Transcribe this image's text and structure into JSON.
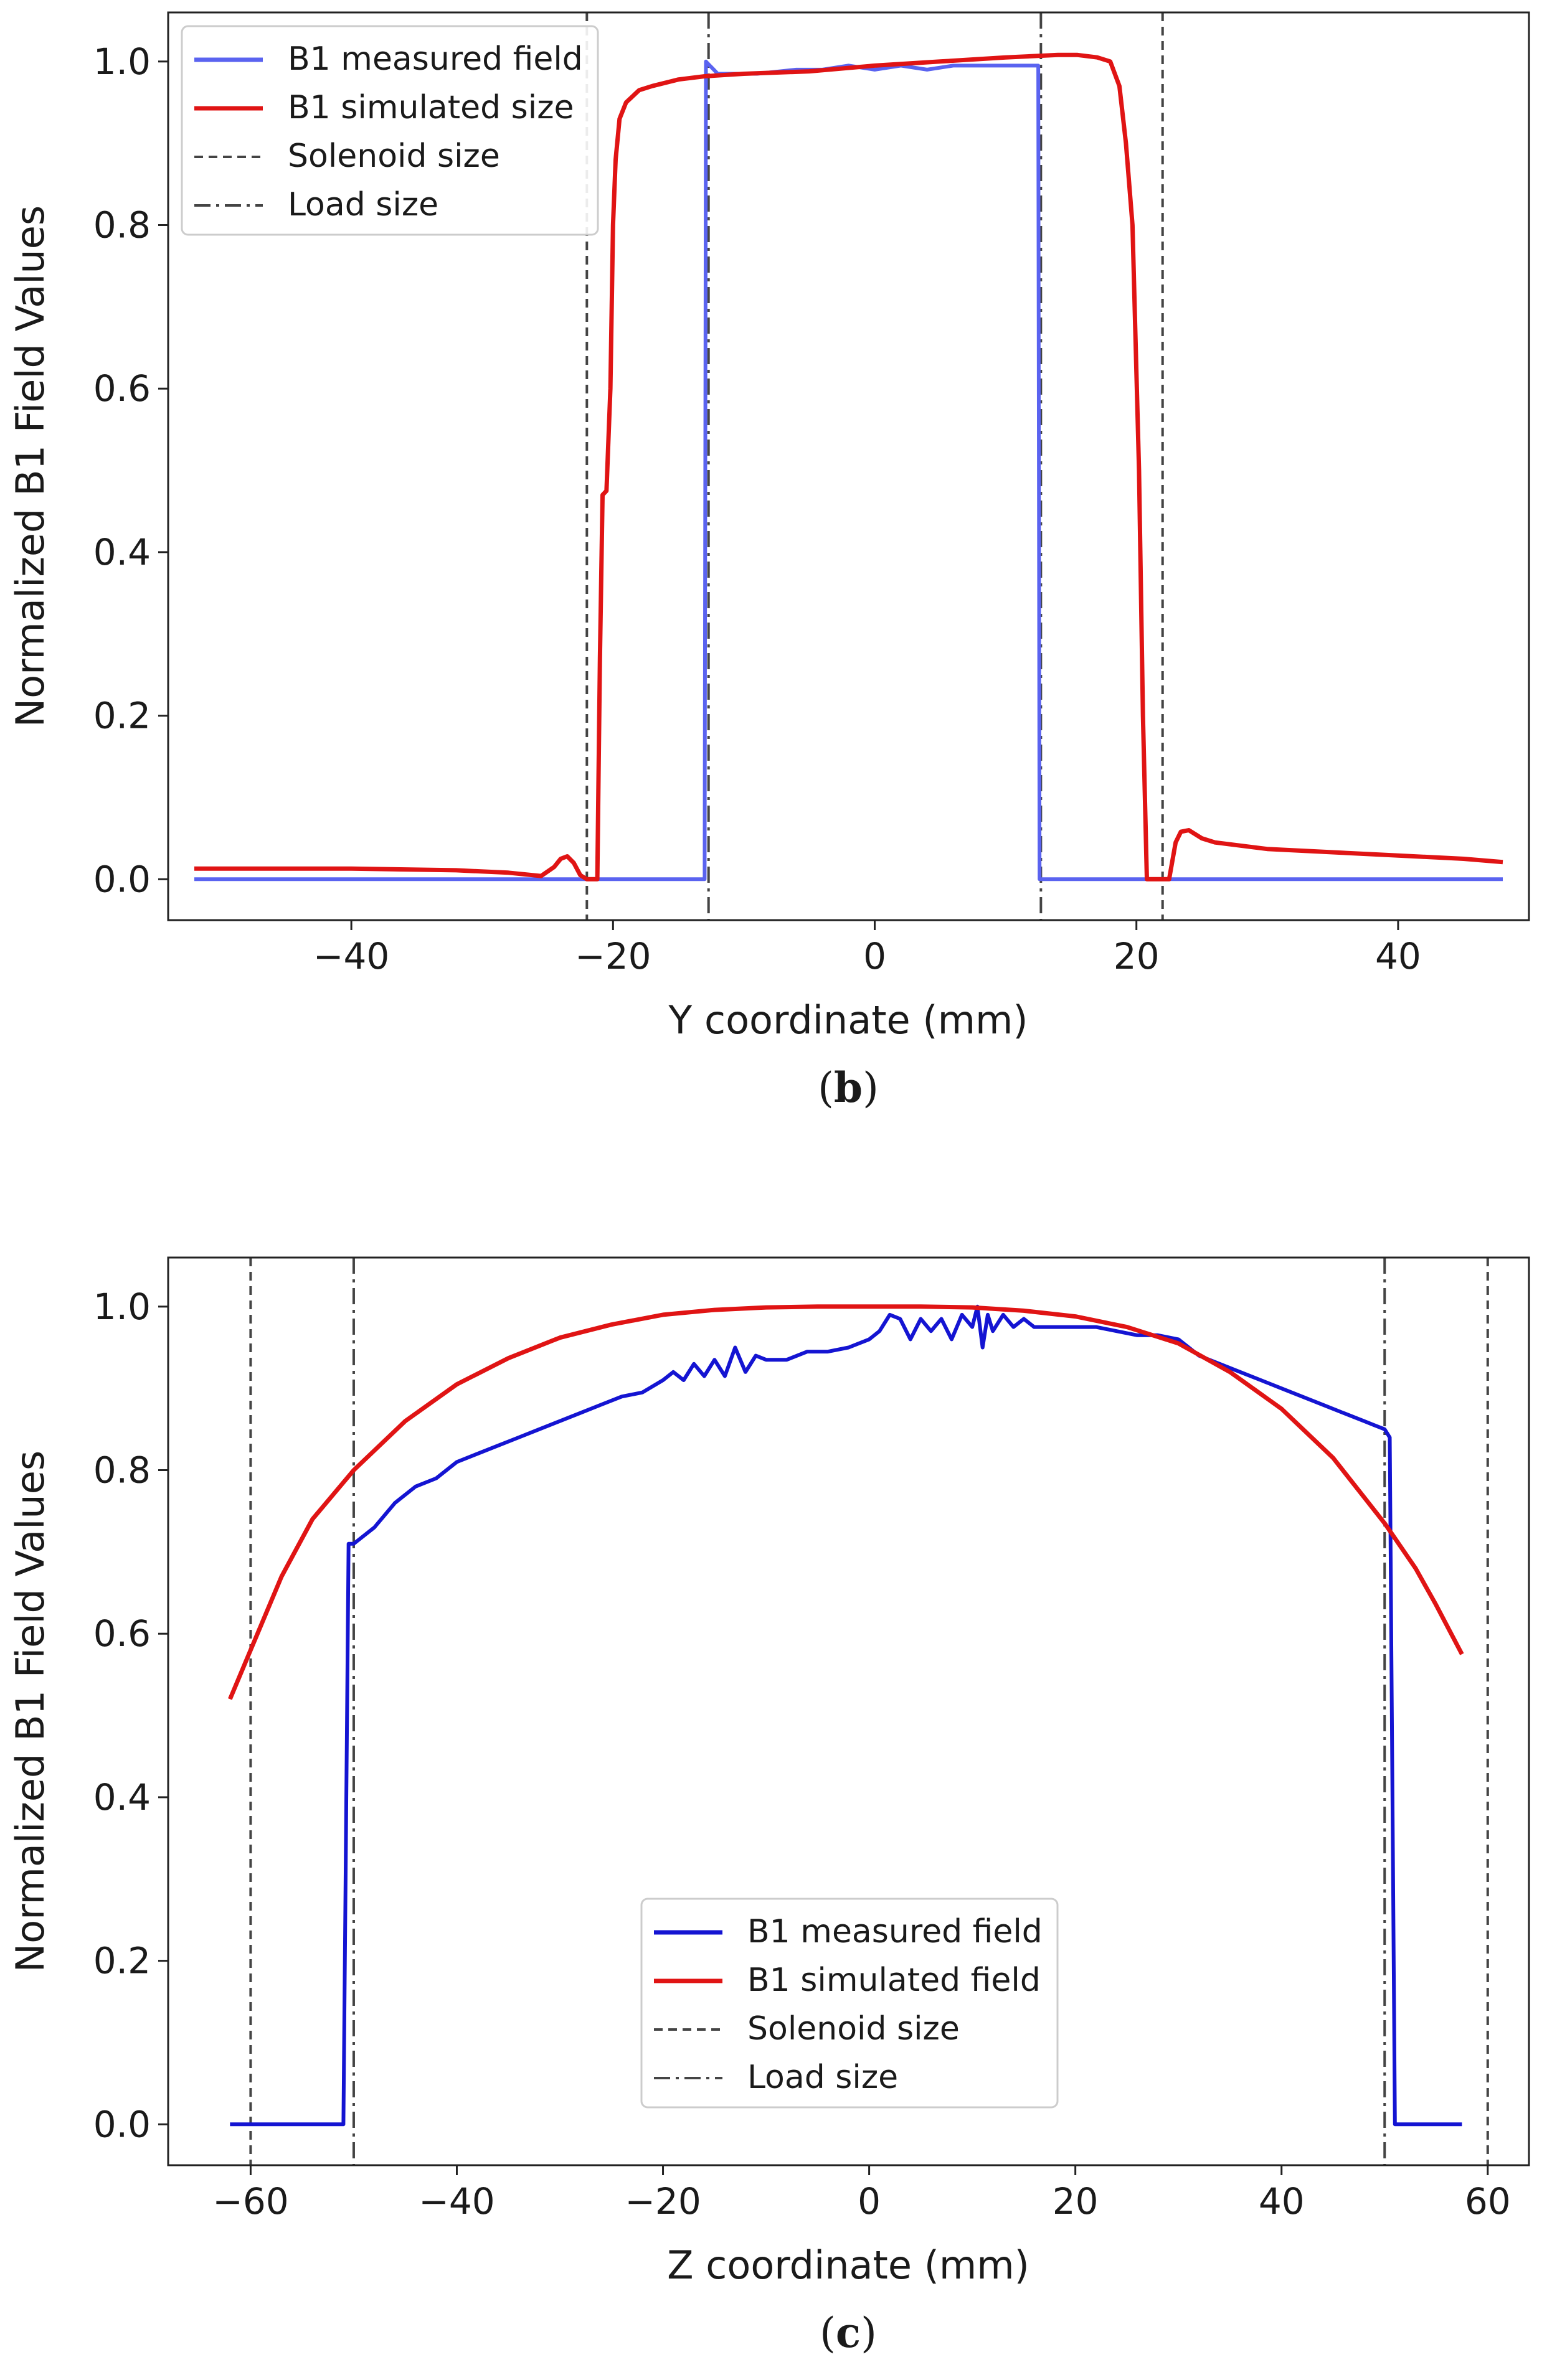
{
  "colors": {
    "measured_b": "#5a63f0",
    "measured_c": "#1414d2",
    "simulated": "#e01414",
    "guide": "#444444",
    "axes": "#222222"
  },
  "chart_data": [
    {
      "id": "panel-b",
      "type": "line",
      "caption_letter": "b",
      "xlabel": "Y coordinate (mm)",
      "ylabel": "Normalized B1 Field Values",
      "xlim": [
        -54,
        50
      ],
      "ylim": [
        -0.05,
        1.06
      ],
      "xticks": [
        -40,
        -20,
        0,
        20,
        40
      ],
      "xtick_labels": [
        "−40",
        "−20",
        "0",
        "20",
        "40"
      ],
      "yticks": [
        0.0,
        0.2,
        0.4,
        0.6,
        0.8,
        1.0
      ],
      "ytick_labels": [
        "0.0",
        "0.2",
        "0.4",
        "0.6",
        "0.8",
        "1.0"
      ],
      "legend_position": "upper-left",
      "series": [
        {
          "name": "B1 measured field",
          "style": "solid",
          "color_key": "measured_b",
          "x": [
            -52,
            -13.0,
            -12.9,
            -12.6,
            -12.3,
            -12,
            -9,
            -6,
            -4,
            -2,
            0,
            2,
            4,
            6,
            8,
            10,
            12.5,
            12.6,
            12.9,
            48
          ],
          "y": [
            0,
            0,
            1.0,
            0.995,
            0.99,
            0.985,
            0.985,
            0.99,
            0.99,
            0.995,
            0.99,
            0.995,
            0.99,
            0.995,
            0.995,
            0.995,
            0.995,
            0.0,
            0.0,
            0.0
          ]
        },
        {
          "name": "B1 simulated size",
          "style": "solid",
          "color_key": "simulated",
          "x": [
            -52,
            -40,
            -32,
            -28,
            -25.5,
            -24.5,
            -24,
            -23.5,
            -23,
            -22.5,
            -22,
            -21.2,
            -21.0,
            -20.8,
            -20.5,
            -20.2,
            -20,
            -19.8,
            -19.5,
            -19,
            -18,
            -17,
            -15,
            -13,
            -10,
            -5,
            0,
            5,
            10,
            14,
            15.5,
            17,
            18,
            18.7,
            19.2,
            19.7,
            20.2,
            20.5,
            20.8,
            21.2,
            22.5,
            23,
            23.4,
            24,
            25,
            26,
            30,
            35,
            40,
            45,
            48
          ],
          "y": [
            0.013,
            0.013,
            0.011,
            0.008,
            0.004,
            0.015,
            0.025,
            0.028,
            0.02,
            0.005,
            0.0,
            0.0,
            0.27,
            0.47,
            0.475,
            0.6,
            0.8,
            0.88,
            0.93,
            0.95,
            0.965,
            0.97,
            0.978,
            0.982,
            0.985,
            0.988,
            0.995,
            1.0,
            1.005,
            1.008,
            1.008,
            1.005,
            1.0,
            0.97,
            0.9,
            0.8,
            0.5,
            0.2,
            0.0,
            0.0,
            0.0,
            0.045,
            0.058,
            0.06,
            0.05,
            0.045,
            0.037,
            0.033,
            0.029,
            0.025,
            0.021
          ]
        },
        {
          "name": "Solenoid size",
          "style": "dashed",
          "color_key": "guide",
          "vlines": [
            -22,
            22
          ]
        },
        {
          "name": "Load size",
          "style": "dashdot",
          "color_key": "guide",
          "vlines": [
            -12.7,
            12.7
          ]
        }
      ]
    },
    {
      "id": "panel-c",
      "type": "line",
      "caption_letter": "c",
      "xlabel": "Z coordinate (mm)",
      "ylabel": "Normalized B1 Field Values",
      "xlim": [
        -68,
        64
      ],
      "ylim": [
        -0.05,
        1.06
      ],
      "xticks": [
        -60,
        -40,
        -20,
        0,
        20,
        40,
        60
      ],
      "xtick_labels": [
        "−60",
        "−40",
        "−20",
        "0",
        "20",
        "40",
        "60"
      ],
      "yticks": [
        0.0,
        0.2,
        0.4,
        0.6,
        0.8,
        1.0
      ],
      "ytick_labels": [
        "0.0",
        "0.2",
        "0.4",
        "0.6",
        "0.8",
        "1.0"
      ],
      "legend_position": "lower-center",
      "series": [
        {
          "name": "B1 measured field",
          "style": "solid",
          "color_key": "measured_c",
          "x": [
            -62,
            -51,
            -50.5,
            -50,
            -48,
            -46,
            -44,
            -42,
            -40,
            -38,
            -36,
            -34,
            -32,
            -30,
            -28,
            -26,
            -24,
            -22,
            -20,
            -19,
            -18,
            -17,
            -16,
            -15,
            -14,
            -13,
            -12,
            -11,
            -10,
            -8,
            -6,
            -4,
            -2,
            0,
            1,
            2,
            3,
            4,
            5,
            6,
            7,
            8,
            9,
            10,
            10.5,
            11,
            11.5,
            12,
            13,
            14,
            15,
            16,
            17,
            18,
            20,
            22,
            24,
            26,
            28,
            30,
            31,
            32,
            34,
            36,
            38,
            40,
            42,
            44,
            46,
            48,
            49,
            50,
            50.5,
            51,
            52,
            57.5
          ],
          "y": [
            0.0,
            0.0,
            0.71,
            0.71,
            0.73,
            0.76,
            0.78,
            0.79,
            0.81,
            0.82,
            0.83,
            0.84,
            0.85,
            0.86,
            0.87,
            0.88,
            0.89,
            0.895,
            0.91,
            0.92,
            0.91,
            0.93,
            0.915,
            0.935,
            0.915,
            0.95,
            0.92,
            0.94,
            0.935,
            0.935,
            0.945,
            0.945,
            0.95,
            0.96,
            0.97,
            0.99,
            0.985,
            0.96,
            0.985,
            0.97,
            0.985,
            0.96,
            0.99,
            0.975,
            1.0,
            0.95,
            0.99,
            0.97,
            0.99,
            0.975,
            0.985,
            0.975,
            0.975,
            0.975,
            0.975,
            0.975,
            0.97,
            0.965,
            0.965,
            0.96,
            0.95,
            0.94,
            0.93,
            0.92,
            0.91,
            0.9,
            0.89,
            0.88,
            0.87,
            0.86,
            0.855,
            0.85,
            0.84,
            0.0,
            0.0,
            0.0
          ]
        },
        {
          "name": "B1 simulated field",
          "style": "solid",
          "color_key": "simulated",
          "x": [
            -62,
            -60,
            -57,
            -54,
            -50,
            -45,
            -40,
            -35,
            -30,
            -25,
            -20,
            -15,
            -10,
            -5,
            0,
            5,
            10,
            15,
            20,
            25,
            30,
            35,
            40,
            45,
            50,
            53,
            55,
            57.5
          ],
          "y": [
            0.52,
            0.58,
            0.67,
            0.74,
            0.8,
            0.86,
            0.905,
            0.937,
            0.962,
            0.978,
            0.99,
            0.996,
            0.999,
            1.0,
            1.0,
            1.0,
            0.999,
            0.995,
            0.988,
            0.975,
            0.955,
            0.92,
            0.875,
            0.815,
            0.735,
            0.68,
            0.635,
            0.575
          ]
        },
        {
          "name": "Solenoid size",
          "style": "dashed",
          "color_key": "guide",
          "vlines": [
            -60,
            60
          ]
        },
        {
          "name": "Load size",
          "style": "dashdot",
          "color_key": "guide",
          "vlines": [
            -50,
            50
          ]
        }
      ]
    }
  ]
}
